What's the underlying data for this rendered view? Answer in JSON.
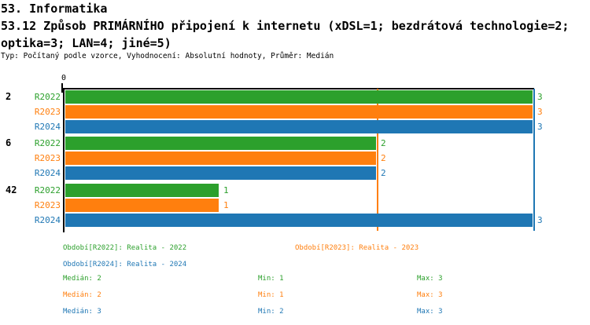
{
  "header": {
    "line1": "53. Informatika",
    "line2": "53.12 Způsob PRIMÁRNÍHO připojení k internetu (xDSL=1; bezdrátová technologie=2;",
    "line3": "optika=3; LAN=4; jiné=5)",
    "meta": "Typ: Počítaný podle vzorce, Vyhodnocení: Absolutní hodnoty, Průměr: Medián"
  },
  "colors": {
    "r2022": "#2ca02c",
    "r2023": "#ff7f0e",
    "r2024": "#1f77b4",
    "axis": "#000000"
  },
  "chart_data": {
    "type": "bar",
    "orientation": "horizontal",
    "title": "53.12 Způsob PRIMÁRNÍHO připojení k internetu (xDSL=1; bezdrátová technologie=2; optika=3; LAN=4; jiné=5)",
    "categories": [
      "2",
      "6",
      "42"
    ],
    "series": [
      {
        "name": "R2022",
        "color": "#2ca02c",
        "values": [
          3,
          2,
          1
        ],
        "median": 2,
        "min": 1,
        "max": 3
      },
      {
        "name": "R2023",
        "color": "#ff7f0e",
        "values": [
          3,
          2,
          1
        ],
        "median": 2,
        "min": 1,
        "max": 3
      },
      {
        "name": "R2024",
        "color": "#1f77b4",
        "values": [
          3,
          2,
          3
        ],
        "median": 3,
        "min": 2,
        "max": 3
      }
    ],
    "xlim": [
      0,
      3
    ],
    "x_axis_zero_label": "0",
    "grid": false,
    "legend_position": "bottom",
    "median_lines": [
      {
        "series": "R2022",
        "value": 2,
        "color": "#2ca02c"
      },
      {
        "series": "R2023",
        "value": 2,
        "color": "#ff7f0e"
      },
      {
        "series": "R2024",
        "value": 3,
        "color": "#1f77b4"
      }
    ]
  },
  "legend": {
    "periods": [
      {
        "label": "Období[R2022]: Realita - 2022",
        "color": "#2ca02c"
      },
      {
        "label": "Období[R2023]: Realita - 2023",
        "color": "#ff7f0e"
      },
      {
        "label": "Období[R2024]: Realita - 2024",
        "color": "#1f77b4"
      }
    ],
    "stats": [
      {
        "median": "Medián: 2",
        "min": "Min: 1",
        "max": "Max: 3",
        "color": "#2ca02c"
      },
      {
        "median": "Medián: 2",
        "min": "Min: 1",
        "max": "Max: 3",
        "color": "#ff7f0e"
      },
      {
        "median": "Medián: 3",
        "min": "Min: 2",
        "max": "Max: 3",
        "color": "#1f77b4"
      }
    ]
  }
}
